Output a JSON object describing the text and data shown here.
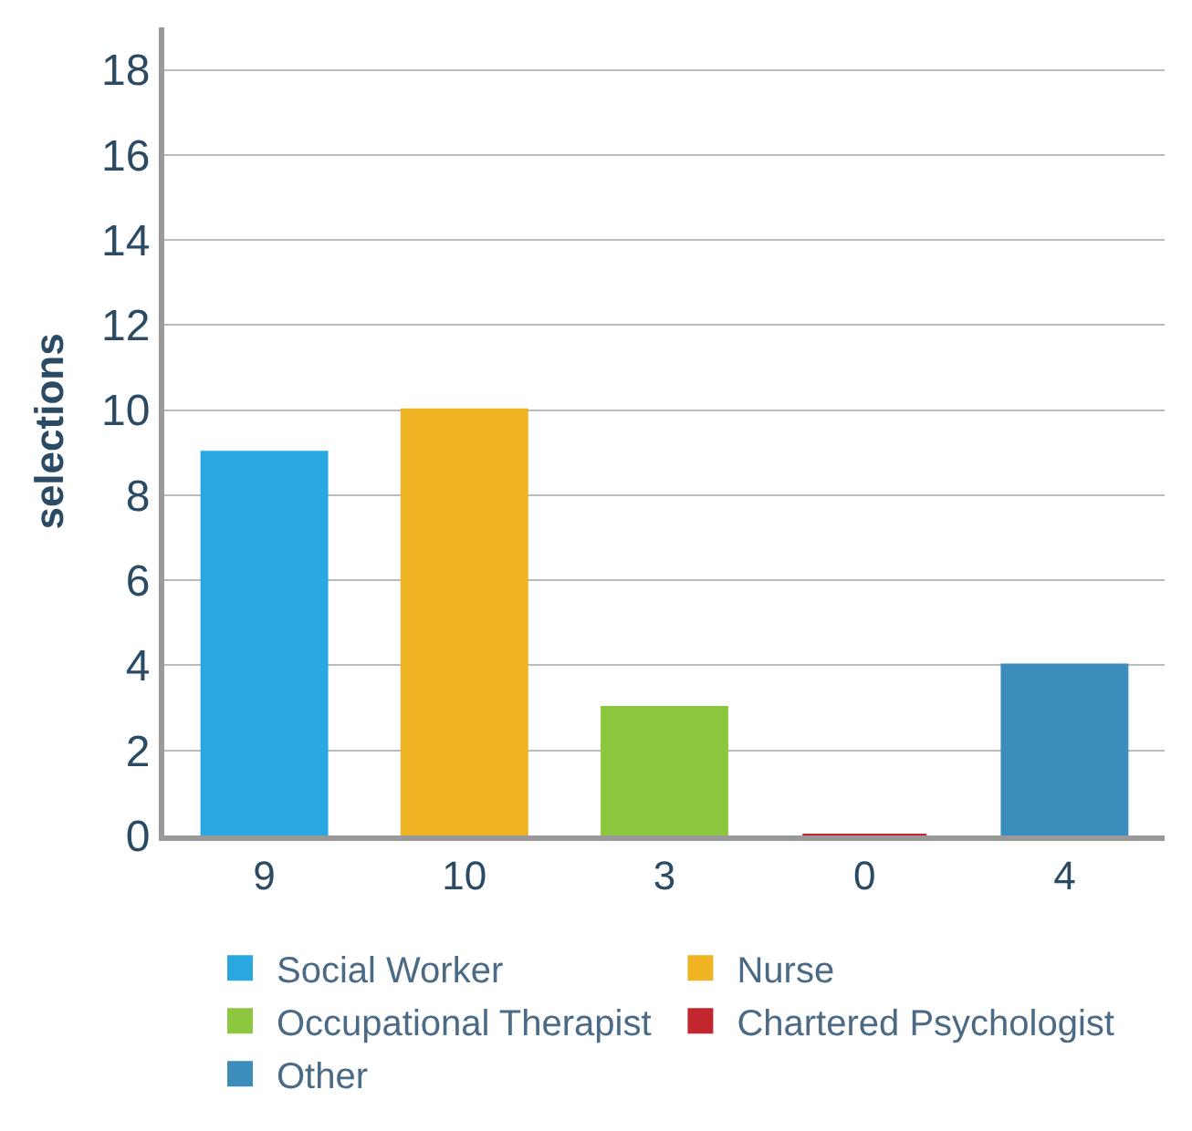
{
  "chart_data": {
    "type": "bar",
    "ylabel": "selections",
    "categories": [
      null,
      null,
      null,
      null,
      null
    ],
    "series": [
      {
        "name": "Social Worker",
        "color": "#29a8e0",
        "values": [
          9,
          null,
          null,
          null,
          null
        ]
      },
      {
        "name": "Nurse",
        "color": "#f0b323",
        "values": [
          null,
          10,
          null,
          null,
          null
        ]
      },
      {
        "name": "Occupational Therapist",
        "color": "#8dc63f",
        "values": [
          null,
          null,
          3,
          null,
          null
        ]
      },
      {
        "name": "Chartered Psychologist",
        "color": "#c1272d",
        "values": [
          null,
          null,
          null,
          0,
          null
        ]
      },
      {
        "name": "Other",
        "color": "#3c8dbc",
        "values": [
          null,
          null,
          null,
          null,
          4
        ]
      }
    ],
    "ylim": [
      0,
      19
    ],
    "yticks": [
      0,
      2,
      4,
      6,
      8,
      10,
      12,
      14,
      16,
      18
    ],
    "grid": "y",
    "legend": "bottom",
    "data_labels": true
  }
}
